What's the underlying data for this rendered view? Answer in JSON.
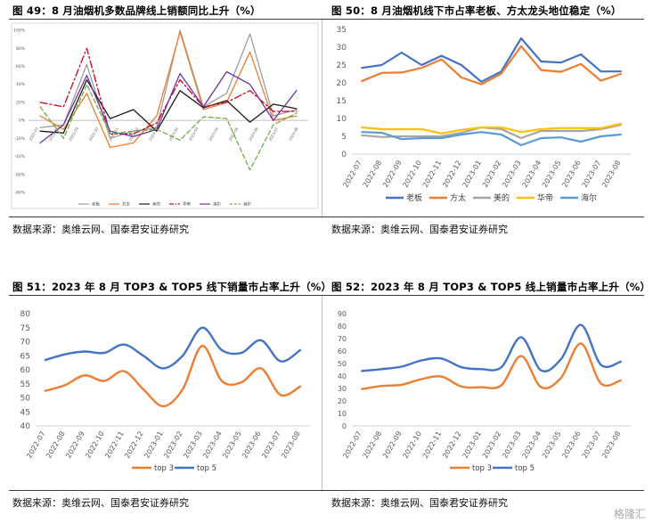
{
  "panels": {
    "p49": {
      "title": "图 49：8 月油烟机多数品牌线上销额同比上升（%）",
      "source": "数据来源：奥维云网、国泰君安证券研究"
    },
    "p50": {
      "title": "图 50：8 月油烟机线下市占率老板、方太龙头地位稳定（%）",
      "source": "数据来源：奥维云网、国泰君安证券研究"
    },
    "p51": {
      "title": "图 51：2023 年 8 月 TOP3 & TOP5 线下销量市占率上升（%）",
      "source": "数据来源：奥维云网、国泰君安证券研究"
    },
    "p52": {
      "title": "图 52：2023 年 8 月 TOP3 & TOP5 线上销量市占率上升（%）",
      "source": "数据来源：奥维云网、国泰君安证券研究"
    }
  },
  "watermark": "格隆汇",
  "chart_data": [
    {
      "id": "p49",
      "type": "line",
      "ylim": [
        -80,
        100
      ],
      "yticks": [
        "100%",
        "80%",
        "60%",
        "40%",
        "20%",
        "0%",
        "-20%",
        "-40%",
        "-60%",
        "-80%"
      ],
      "ytick_values": [
        100,
        80,
        60,
        40,
        20,
        0,
        -20,
        -40,
        -60,
        -80
      ],
      "categories": [
        "2022-09",
        "2022-10",
        "2022-11",
        "2022-12",
        "2023-01",
        "2023-02",
        "2023-03",
        "2023-04",
        "2023-05",
        "2023-06",
        "2023-07",
        "2023-08"
      ],
      "category_labels": [
        "2022-07",
        "2022-08",
        "2022-09",
        "2022-10",
        "2022-11",
        "2022-12",
        "2023-01",
        "2023-02",
        "2023-03",
        "2023-04",
        "2023-05",
        "2023-06",
        "2023-07",
        "2023-08"
      ],
      "series": [
        {
          "name": "老板",
          "color": "#9e9e9e",
          "dash": "",
          "values": [
            -8,
            -5,
            62,
            -20,
            -12,
            -8,
            100,
            15,
            30,
            96,
            5,
            12
          ]
        },
        {
          "name": "方太",
          "color": "#ed7d31",
          "dash": "",
          "values": [
            5,
            -10,
            30,
            -30,
            -25,
            5,
            98,
            12,
            20,
            76,
            0,
            5
          ]
        },
        {
          "name": "美的",
          "color": "#1a1a1a",
          "dash": "",
          "values": [
            -12,
            -14,
            45,
            2,
            12,
            -12,
            33,
            14,
            22,
            -2,
            18,
            13
          ]
        },
        {
          "name": "华帝",
          "color": "#d0021b",
          "dash": "8,3,2,3",
          "values": [
            20,
            15,
            80,
            -15,
            -15,
            -3,
            45,
            15,
            20,
            33,
            10,
            10
          ]
        },
        {
          "name": "海尔",
          "color": "#7030a0",
          "dash": "",
          "values": [
            -25,
            -5,
            50,
            -12,
            -18,
            -10,
            52,
            15,
            54,
            40,
            0,
            33
          ]
        },
        {
          "name": "海尔",
          "color": "#70ad47",
          "dash": "5,3",
          "values": [
            15,
            -20,
            40,
            -15,
            -12,
            -10,
            -22,
            4,
            2,
            -55,
            -5,
            8
          ]
        }
      ]
    },
    {
      "id": "p50",
      "type": "line",
      "ylim": [
        0,
        35
      ],
      "yticks": [
        0,
        5,
        10,
        15,
        20,
        25,
        30,
        35
      ],
      "categories": [
        "2022-07",
        "2022-08",
        "2022-09",
        "2022-10",
        "2022-11",
        "2022-12",
        "2023-01",
        "2023-02",
        "2023-03",
        "2023-04",
        "2023-05",
        "2023-06",
        "2023-07",
        "2023-08"
      ],
      "series": [
        {
          "name": "老板",
          "color": "#4472c4",
          "values": [
            24.2,
            25.0,
            28.5,
            25.0,
            27.6,
            25.0,
            20.3,
            23.2,
            32.5,
            26.0,
            25.7,
            28.0,
            23.2,
            23.2
          ]
        },
        {
          "name": "方太",
          "color": "#ed7d31",
          "values": [
            20.5,
            22.8,
            22.9,
            24.2,
            26.6,
            21.5,
            19.6,
            22.6,
            30.3,
            23.6,
            23.1,
            25.3,
            20.6,
            22.5
          ]
        },
        {
          "name": "美的",
          "color": "#a5a5a5",
          "values": [
            5.3,
            4.8,
            5.0,
            5.0,
            5.0,
            6.0,
            7.5,
            7.0,
            4.5,
            6.5,
            6.5,
            6.5,
            7.0,
            8.2
          ]
        },
        {
          "name": "华帝",
          "color": "#ffc000",
          "values": [
            7.5,
            7.0,
            7.0,
            7.0,
            5.8,
            6.8,
            7.5,
            7.5,
            6.2,
            7.0,
            7.3,
            7.3,
            7.3,
            8.5
          ]
        },
        {
          "name": "海尔",
          "color": "#5b9bd5",
          "values": [
            6.2,
            6.0,
            4.2,
            4.5,
            4.5,
            5.5,
            6.2,
            5.5,
            2.5,
            4.5,
            4.7,
            3.5,
            5.0,
            5.5
          ]
        }
      ]
    },
    {
      "id": "p51",
      "type": "line",
      "ylim": [
        40,
        80
      ],
      "yticks": [
        40,
        45,
        50,
        55,
        60,
        65,
        70,
        75,
        80
      ],
      "categories": [
        "2022-07",
        "2022-08",
        "2022-09",
        "2022-10",
        "2022-11",
        "2022-12",
        "2023-01",
        "2023-02",
        "2023-03",
        "2023-04",
        "2023-05",
        "2023-06",
        "2023-07",
        "2023-08"
      ],
      "series": [
        {
          "name": "top 3",
          "color": "#ed7d31",
          "values": [
            52.5,
            54.5,
            58.0,
            56.0,
            59.5,
            53.0,
            47.0,
            53.0,
            68.5,
            56.0,
            55.5,
            60.5,
            51.0,
            54.0
          ]
        },
        {
          "name": "top 5",
          "color": "#4472c4",
          "values": [
            63.5,
            65.5,
            66.5,
            66.0,
            69.0,
            65.0,
            60.5,
            65.0,
            75.0,
            67.0,
            66.0,
            70.5,
            63.0,
            67.0
          ]
        }
      ]
    },
    {
      "id": "p52",
      "type": "line",
      "ylim": [
        0,
        90
      ],
      "yticks": [
        0,
        10,
        20,
        30,
        40,
        50,
        60,
        70,
        80,
        90
      ],
      "categories": [
        "2022-07",
        "2022-08",
        "2022-09",
        "2022-10",
        "2022-11",
        "2022-12",
        "2023-01",
        "2023-02",
        "2023-03",
        "2023-04",
        "2023-05",
        "2023-06",
        "2023-07",
        "2023-08"
      ],
      "series": [
        {
          "name": "top 3",
          "color": "#ed7d31",
          "values": [
            29.5,
            32.0,
            33.0,
            37.5,
            39.5,
            31.5,
            31.0,
            32.5,
            56.0,
            31.0,
            38.5,
            66.0,
            34.0,
            36.5
          ]
        },
        {
          "name": "top 5",
          "color": "#4472c4",
          "values": [
            44.0,
            45.5,
            47.5,
            52.5,
            54.0,
            47.0,
            45.5,
            47.0,
            71.0,
            44.5,
            53.5,
            81.0,
            49.0,
            51.5
          ]
        }
      ]
    }
  ]
}
